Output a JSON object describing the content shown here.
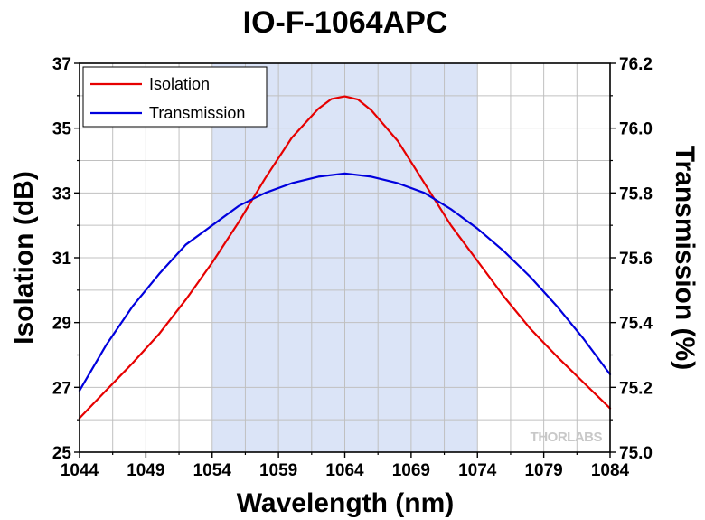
{
  "chart_data": {
    "type": "line",
    "title": "IO-F-1064APC",
    "xlabel": "Wavelength (nm)",
    "ylabel": "Isolation (dB)",
    "y2label": "Transmission (%)",
    "xlim": [
      1044,
      1084
    ],
    "ylim": [
      25,
      37
    ],
    "y2lim": [
      75.0,
      76.2
    ],
    "xticks": [
      1044,
      1049,
      1054,
      1059,
      1064,
      1069,
      1074,
      1079,
      1084
    ],
    "yticks": [
      25,
      27,
      29,
      31,
      33,
      35,
      37
    ],
    "y2ticks": [
      "75.0",
      "75.2",
      "75.4",
      "75.6",
      "75.8",
      "76.0",
      "76.2"
    ],
    "grid": true,
    "legend_position": "top-left",
    "shaded_band": {
      "x": [
        1054,
        1074
      ],
      "color": "#dbe4f7"
    },
    "series": [
      {
        "name": "Isolation",
        "axis": "left",
        "color": "#e60000",
        "x": [
          1044,
          1046,
          1048,
          1050,
          1052,
          1054,
          1056,
          1058,
          1060,
          1062,
          1063,
          1064,
          1065,
          1066,
          1068,
          1070,
          1072,
          1074,
          1076,
          1078,
          1080,
          1082,
          1084
        ],
        "y": [
          26.05,
          26.9,
          27.75,
          28.65,
          29.7,
          30.85,
          32.1,
          33.45,
          34.7,
          35.6,
          35.9,
          35.98,
          35.88,
          35.55,
          34.6,
          33.3,
          32.0,
          30.9,
          29.8,
          28.8,
          27.95,
          27.15,
          26.35
        ]
      },
      {
        "name": "Transmission",
        "axis": "right",
        "color": "#0000dd",
        "x": [
          1044,
          1046,
          1048,
          1050,
          1052,
          1054,
          1056,
          1058,
          1060,
          1062,
          1064,
          1066,
          1068,
          1070,
          1072,
          1074,
          1076,
          1078,
          1080,
          1082,
          1084
        ],
        "y": [
          75.19,
          75.33,
          75.45,
          75.55,
          75.64,
          75.7,
          75.76,
          75.8,
          75.83,
          75.85,
          75.86,
          75.85,
          75.83,
          75.8,
          75.75,
          75.69,
          75.62,
          75.54,
          75.45,
          75.35,
          75.24
        ]
      }
    ]
  },
  "branding": {
    "watermark": "THORLABS"
  }
}
